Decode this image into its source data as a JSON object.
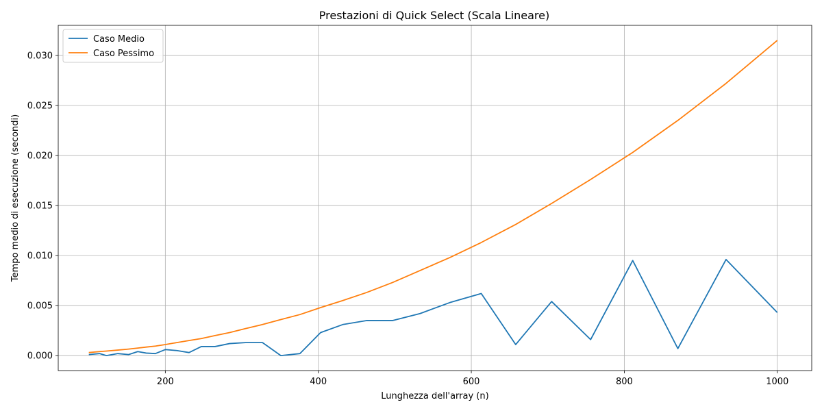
{
  "chart_data": {
    "type": "line",
    "title": "Prestazioni di Quick Select (Scala Lineare)",
    "xlabel": "Lunghezza dell'array (n)",
    "ylabel": "Tempo medio di esecuzione (secondi)",
    "xlim": [
      60,
      1045
    ],
    "ylim": [
      -0.0015,
      0.033
    ],
    "xticks": [
      200,
      400,
      600,
      800,
      1000
    ],
    "xtick_labels": [
      "200",
      "400",
      "600",
      "800",
      "1000"
    ],
    "yticks": [
      0.0,
      0.005,
      0.01,
      0.015,
      0.02,
      0.025,
      0.03
    ],
    "ytick_labels": [
      "0.000",
      "0.005",
      "0.010",
      "0.015",
      "0.020",
      "0.025",
      "0.030"
    ],
    "grid": true,
    "legend_position": "top-left",
    "series": [
      {
        "name": "Caso Medio",
        "color": "#1f77b4",
        "x": [
          100,
          114,
          123,
          138,
          152,
          164,
          175,
          187,
          200,
          215,
          231,
          247,
          265,
          284,
          305,
          327,
          351,
          376,
          403,
          432,
          463,
          497,
          533,
          572,
          613,
          658,
          705,
          756,
          811,
          870,
          933,
          1000
        ],
        "y": [
          0.0001,
          0.0002,
          0.0,
          0.0002,
          0.0001,
          0.0004,
          0.00025,
          0.0002,
          0.0006,
          0.0005,
          0.0003,
          0.0009,
          0.0009,
          0.0012,
          0.0013,
          0.0013,
          0.0,
          0.0002,
          0.0023,
          0.0031,
          0.0035,
          0.0035,
          0.0042,
          0.0053,
          0.0062,
          0.0011,
          0.0054,
          0.0016,
          0.0095,
          0.0007,
          0.0096,
          0.0043
        ]
      },
      {
        "name": "Caso Pessimo",
        "color": "#ff7f0e",
        "x": [
          100,
          114,
          123,
          138,
          152,
          164,
          175,
          187,
          200,
          215,
          231,
          247,
          265,
          284,
          305,
          327,
          351,
          376,
          403,
          432,
          463,
          497,
          533,
          572,
          613,
          658,
          705,
          756,
          811,
          870,
          933,
          1000
        ],
        "y": [
          0.0003,
          0.0004,
          0.00045,
          0.00055,
          0.00065,
          0.00075,
          0.00085,
          0.00095,
          0.0011,
          0.0013,
          0.0015,
          0.0017,
          0.002,
          0.0023,
          0.0027,
          0.0031,
          0.0036,
          0.0041,
          0.0048,
          0.0055,
          0.0063,
          0.0073,
          0.0085,
          0.0098,
          0.0113,
          0.0131,
          0.0152,
          0.0176,
          0.0203,
          0.0235,
          0.0272,
          0.0315
        ]
      }
    ]
  }
}
